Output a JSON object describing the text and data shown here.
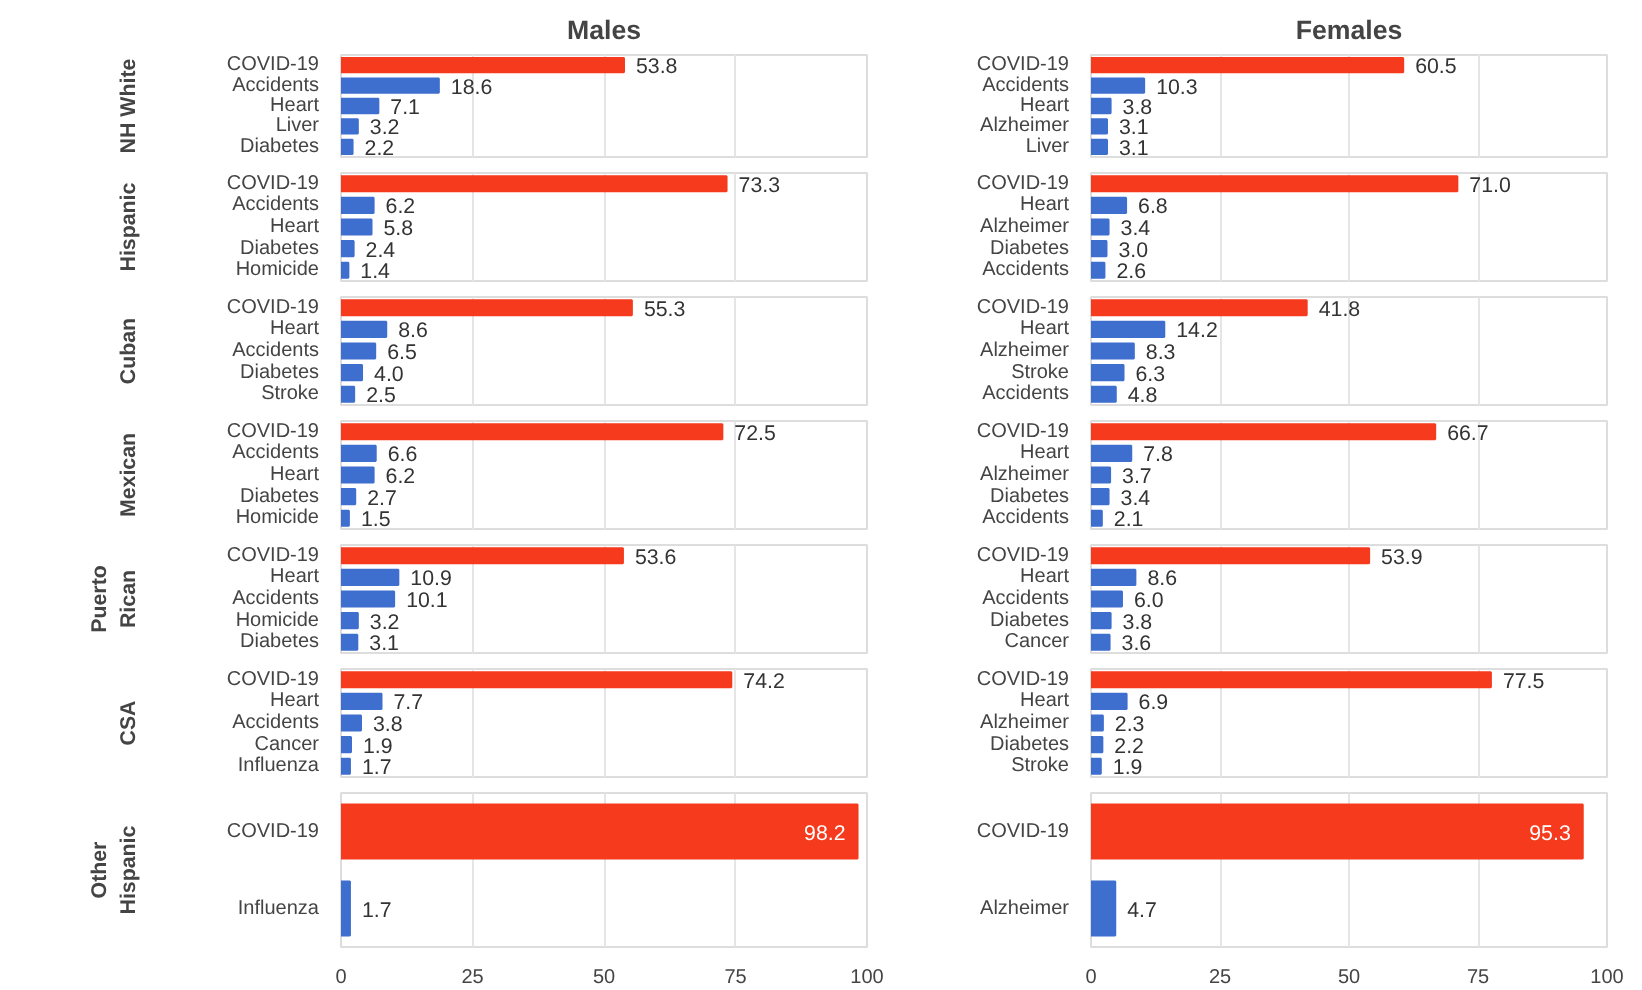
{
  "chart_data": [
    {
      "type": "bar",
      "orientation": "horizontal",
      "title": "Males",
      "ylabel": "NH White",
      "categories": [
        "COVID-19",
        "Accidents",
        "Heart",
        "Liver",
        "Diabetes"
      ],
      "values": [
        53.8,
        18.6,
        7.1,
        3.2,
        2.2
      ],
      "value_labels": [
        "53.8",
        "18.6",
        "7.1",
        "3.2",
        "2.2"
      ],
      "colors": [
        "#f63a1e",
        "#3e6fcf",
        "#3e6fcf",
        "#3e6fcf",
        "#3e6fcf"
      ],
      "xlim": [
        0,
        100
      ],
      "xticks": [
        0,
        25,
        50,
        75,
        100
      ],
      "tick_labels": "y",
      "grid": "x"
    },
    {
      "type": "bar",
      "orientation": "horizontal",
      "title": "Females",
      "categories": [
        "COVID-19",
        "Accidents",
        "Heart",
        "Alzheimer",
        "Liver"
      ],
      "values": [
        60.5,
        10.3,
        3.8,
        3.1,
        3.1
      ],
      "value_labels": [
        "60.5",
        "10.3",
        "3.8",
        "3.1",
        "3.1"
      ],
      "colors": [
        "#f63a1e",
        "#3e6fcf",
        "#3e6fcf",
        "#3e6fcf",
        "#3e6fcf"
      ],
      "xlim": [
        0,
        100
      ],
      "xticks": [
        0,
        25,
        50,
        75,
        100
      ],
      "tick_labels": "y",
      "grid": "x"
    },
    {
      "type": "bar",
      "orientation": "horizontal",
      "ylabel": "Hispanic",
      "categories": [
        "COVID-19",
        "Accidents",
        "Heart",
        "Diabetes",
        "Homicide"
      ],
      "values": [
        73.3,
        6.2,
        5.8,
        2.4,
        1.4
      ],
      "value_labels": [
        "73.3",
        "6.2",
        "5.8",
        "2.4",
        "1.4"
      ],
      "colors": [
        "#f63a1e",
        "#3e6fcf",
        "#3e6fcf",
        "#3e6fcf",
        "#3e6fcf"
      ],
      "xlim": [
        0,
        100
      ],
      "xticks": [
        0,
        25,
        50,
        75,
        100
      ],
      "tick_labels": "y",
      "grid": "x"
    },
    {
      "type": "bar",
      "orientation": "horizontal",
      "categories": [
        "COVID-19",
        "Heart",
        "Alzheimer",
        "Diabetes",
        "Accidents"
      ],
      "values": [
        71.0,
        6.8,
        3.4,
        3.0,
        2.6
      ],
      "value_labels": [
        "71.0",
        "6.8",
        "3.4",
        "3.0",
        "2.6"
      ],
      "colors": [
        "#f63a1e",
        "#3e6fcf",
        "#3e6fcf",
        "#3e6fcf",
        "#3e6fcf"
      ],
      "xlim": [
        0,
        100
      ],
      "xticks": [
        0,
        25,
        50,
        75,
        100
      ],
      "tick_labels": "y",
      "grid": "x"
    },
    {
      "type": "bar",
      "orientation": "horizontal",
      "ylabel": "Cuban",
      "categories": [
        "COVID-19",
        "Heart",
        "Accidents",
        "Diabetes",
        "Stroke"
      ],
      "values": [
        55.3,
        8.6,
        6.5,
        4.0,
        2.5
      ],
      "value_labels": [
        "55.3",
        "8.6",
        "6.5",
        "4.0",
        "2.5"
      ],
      "colors": [
        "#f63a1e",
        "#3e6fcf",
        "#3e6fcf",
        "#3e6fcf",
        "#3e6fcf"
      ],
      "xlim": [
        0,
        100
      ],
      "xticks": [
        0,
        25,
        50,
        75,
        100
      ],
      "tick_labels": "y",
      "grid": "x"
    },
    {
      "type": "bar",
      "orientation": "horizontal",
      "categories": [
        "COVID-19",
        "Heart",
        "Alzheimer",
        "Stroke",
        "Accidents"
      ],
      "values": [
        41.8,
        14.2,
        8.3,
        6.3,
        4.8
      ],
      "value_labels": [
        "41.8",
        "14.2",
        "8.3",
        "6.3",
        "4.8"
      ],
      "colors": [
        "#f63a1e",
        "#3e6fcf",
        "#3e6fcf",
        "#3e6fcf",
        "#3e6fcf"
      ],
      "xlim": [
        0,
        100
      ],
      "xticks": [
        0,
        25,
        50,
        75,
        100
      ],
      "tick_labels": "y",
      "grid": "x"
    },
    {
      "type": "bar",
      "orientation": "horizontal",
      "ylabel": "Mexican",
      "categories": [
        "COVID-19",
        "Accidents",
        "Heart",
        "Diabetes",
        "Homicide"
      ],
      "values": [
        72.5,
        6.6,
        6.2,
        2.7,
        1.5
      ],
      "value_labels": [
        "72.5",
        "6.6",
        "6.2",
        "2.7",
        "1.5"
      ],
      "colors": [
        "#f63a1e",
        "#3e6fcf",
        "#3e6fcf",
        "#3e6fcf",
        "#3e6fcf"
      ],
      "xlim": [
        0,
        100
      ],
      "xticks": [
        0,
        25,
        50,
        75,
        100
      ],
      "tick_labels": "y",
      "grid": "x"
    },
    {
      "type": "bar",
      "orientation": "horizontal",
      "categories": [
        "COVID-19",
        "Heart",
        "Alzheimer",
        "Diabetes",
        "Accidents"
      ],
      "values": [
        66.7,
        7.8,
        3.7,
        3.4,
        2.1
      ],
      "value_labels": [
        "66.7",
        "7.8",
        "3.7",
        "3.4",
        "2.1"
      ],
      "colors": [
        "#f63a1e",
        "#3e6fcf",
        "#3e6fcf",
        "#3e6fcf",
        "#3e6fcf"
      ],
      "xlim": [
        0,
        100
      ],
      "xticks": [
        0,
        25,
        50,
        75,
        100
      ],
      "tick_labels": "y",
      "grid": "x"
    },
    {
      "type": "bar",
      "orientation": "horizontal",
      "ylabel": "Puerto Rican",
      "categories": [
        "COVID-19",
        "Heart",
        "Accidents",
        "Homicide",
        "Diabetes"
      ],
      "values": [
        53.6,
        10.9,
        10.1,
        3.2,
        3.1
      ],
      "value_labels": [
        "53.6",
        "10.9",
        "10.1",
        "3.2",
        "3.1"
      ],
      "colors": [
        "#f63a1e",
        "#3e6fcf",
        "#3e6fcf",
        "#3e6fcf",
        "#3e6fcf"
      ],
      "xlim": [
        0,
        100
      ],
      "xticks": [
        0,
        25,
        50,
        75,
        100
      ],
      "tick_labels": "y",
      "grid": "x"
    },
    {
      "type": "bar",
      "orientation": "horizontal",
      "categories": [
        "COVID-19",
        "Heart",
        "Accidents",
        "Diabetes",
        "Cancer"
      ],
      "values": [
        53.9,
        8.6,
        6.0,
        3.8,
        3.6
      ],
      "value_labels": [
        "53.9",
        "8.6",
        "6.0",
        "3.8",
        "3.6"
      ],
      "colors": [
        "#f63a1e",
        "#3e6fcf",
        "#3e6fcf",
        "#3e6fcf",
        "#3e6fcf"
      ],
      "xlim": [
        0,
        100
      ],
      "xticks": [
        0,
        25,
        50,
        75,
        100
      ],
      "tick_labels": "y",
      "grid": "x"
    },
    {
      "type": "bar",
      "orientation": "horizontal",
      "ylabel": "CSA",
      "categories": [
        "COVID-19",
        "Heart",
        "Accidents",
        "Cancer",
        "Influenza"
      ],
      "values": [
        74.2,
        7.7,
        3.8,
        1.9,
        1.7
      ],
      "value_labels": [
        "74.2",
        "7.7",
        "3.8",
        "1.9",
        "1.7"
      ],
      "colors": [
        "#f63a1e",
        "#3e6fcf",
        "#3e6fcf",
        "#3e6fcf",
        "#3e6fcf"
      ],
      "xlim": [
        0,
        100
      ],
      "xticks": [
        0,
        25,
        50,
        75,
        100
      ],
      "tick_labels": "y",
      "grid": "x"
    },
    {
      "type": "bar",
      "orientation": "horizontal",
      "categories": [
        "COVID-19",
        "Heart",
        "Alzheimer",
        "Diabetes",
        "Stroke"
      ],
      "values": [
        77.5,
        6.9,
        2.3,
        2.2,
        1.9
      ],
      "value_labels": [
        "77.5",
        "6.9",
        "2.3",
        "2.2",
        "1.9"
      ],
      "colors": [
        "#f63a1e",
        "#3e6fcf",
        "#3e6fcf",
        "#3e6fcf",
        "#3e6fcf"
      ],
      "xlim": [
        0,
        100
      ],
      "xticks": [
        0,
        25,
        50,
        75,
        100
      ],
      "tick_labels": "y",
      "grid": "x"
    },
    {
      "type": "bar",
      "orientation": "horizontal",
      "ylabel": "Other Hispanic",
      "categories": [
        "COVID-19",
        "Influenza"
      ],
      "values": [
        98.2,
        1.7
      ],
      "value_labels": [
        "98.2",
        "1.7"
      ],
      "colors": [
        "#f63a1e",
        "#3e6fcf"
      ],
      "xlim": [
        0,
        100
      ],
      "xticks": [
        0,
        25,
        50,
        75,
        100
      ],
      "grid": "x"
    },
    {
      "type": "bar",
      "orientation": "horizontal",
      "categories": [
        "COVID-19",
        "Alzheimer"
      ],
      "values": [
        95.3,
        4.7
      ],
      "value_labels": [
        "95.3",
        "4.7"
      ],
      "colors": [
        "#f63a1e",
        "#3e6fcf"
      ],
      "xlim": [
        0,
        100
      ],
      "xticks": [
        0,
        25,
        50,
        75,
        100
      ],
      "grid": "x"
    }
  ]
}
